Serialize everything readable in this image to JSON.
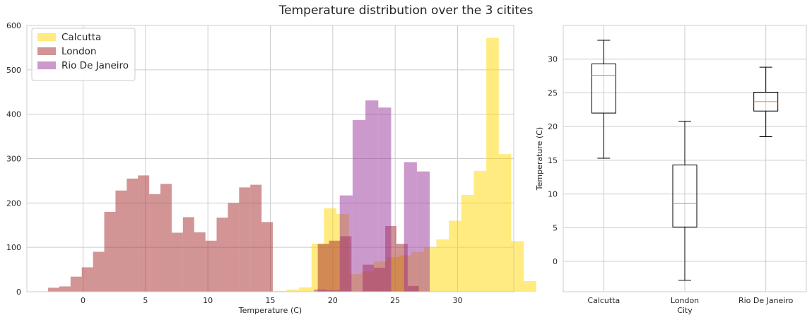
{
  "title": "Temperature distribution over the 3 citites",
  "chart_data": [
    {
      "type": "bar",
      "subtype": "histogram",
      "xlabel": "Temperature (C)",
      "ylabel": "",
      "xlim": [
        -4.5,
        34.5
      ],
      "ylim": [
        0,
        600
      ],
      "xticks": [
        0,
        5,
        10,
        15,
        20,
        25,
        30
      ],
      "yticks": [
        0,
        100,
        200,
        300,
        400,
        500,
        600
      ],
      "grid": true,
      "legend": "top-left",
      "series": [
        {
          "name": "Calcutta",
          "color": "#ffd700",
          "alpha": 0.5,
          "bin_start": 15.3,
          "bin_width": 1.0,
          "values": [
            2,
            5,
            10,
            108,
            188,
            175,
            40,
            45,
            68,
            78,
            82,
            90,
            100,
            118,
            160,
            218,
            272,
            572,
            310,
            114,
            24
          ]
        },
        {
          "name": "London",
          "color": "#a52a2a",
          "alpha": 0.5,
          "bin_start": -2.8,
          "bin_width": 0.9,
          "values": [
            9,
            12,
            34,
            55,
            90,
            180,
            228,
            255,
            262,
            220,
            243,
            133,
            168,
            134,
            115,
            167,
            200,
            235,
            241,
            157,
            0,
            0,
            0,
            0,
            108,
            115,
            125,
            0,
            61,
            54,
            148,
            108,
            13
          ]
        },
        {
          "name": "Rio De Janeiro",
          "color": "#993399",
          "alpha": 0.5,
          "bin_start": 18.5,
          "bin_width": 1.03,
          "values": [
            5,
            3,
            217,
            387,
            431,
            415,
            0,
            292,
            271,
            0
          ]
        }
      ]
    },
    {
      "type": "boxplot",
      "xlabel": "City",
      "ylabel": "Temperature (C)",
      "ylim": [
        -4.5,
        35
      ],
      "yticks": [
        0,
        5,
        10,
        15,
        20,
        25,
        30
      ],
      "grid": true,
      "categories": [
        "Calcutta",
        "London",
        "Rio De Janeiro"
      ],
      "boxes": [
        {
          "name": "Calcutta",
          "whislo": 15.3,
          "q1": 22.0,
          "med": 27.6,
          "q3": 29.3,
          "whishi": 32.8
        },
        {
          "name": "London",
          "whislo": -2.8,
          "q1": 5.1,
          "med": 8.6,
          "q3": 14.3,
          "whishi": 20.8
        },
        {
          "name": "Rio De Janeiro",
          "whislo": 18.5,
          "q1": 22.3,
          "med": 23.7,
          "q3": 25.1,
          "whishi": 28.8
        }
      ],
      "median_color": "#ff7f0e"
    }
  ]
}
